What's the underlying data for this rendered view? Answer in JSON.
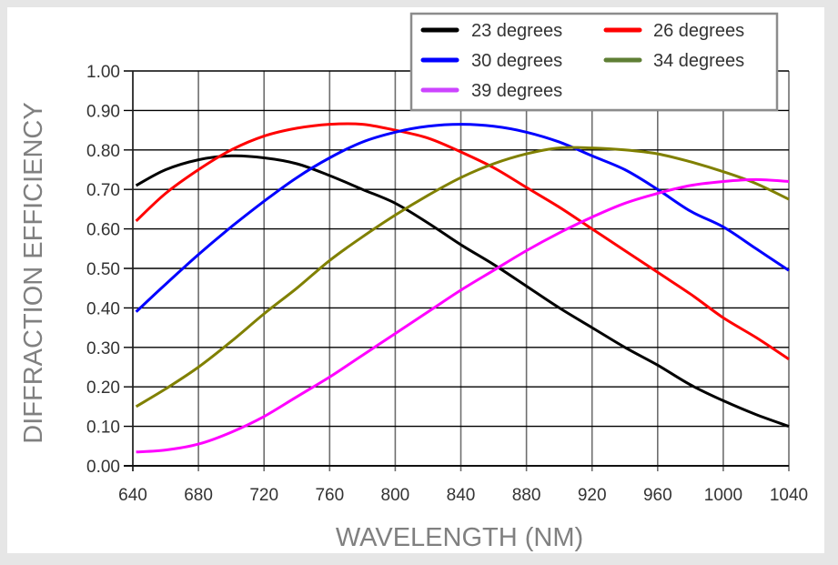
{
  "chart_data": {
    "type": "line",
    "title": "",
    "xlabel": "WAVELENGTH (NM)",
    "ylabel": "DIFFRACTION EFFICIENCY",
    "xlim": [
      640,
      1040
    ],
    "ylim": [
      0,
      1
    ],
    "grid": true,
    "legend_position": "top-right",
    "x_ticks": [
      "640",
      "680",
      "720",
      "760",
      "800",
      "840",
      "880",
      "920",
      "960",
      "1000",
      "1040"
    ],
    "y_ticks": [
      "0.00",
      "0.10",
      "0.20",
      "0.30",
      "0.40",
      "0.50",
      "0.60",
      "0.70",
      "0.80",
      "0.90",
      "1.00"
    ],
    "x": [
      642,
      660,
      680,
      700,
      720,
      740,
      760,
      780,
      800,
      820,
      840,
      860,
      880,
      900,
      920,
      940,
      960,
      980,
      1000,
      1020,
      1040
    ],
    "series": [
      {
        "name": "23 degrees",
        "color": "#000000",
        "values": [
          0.71,
          0.75,
          0.775,
          0.785,
          0.78,
          0.765,
          0.735,
          0.7,
          0.665,
          0.615,
          0.56,
          0.51,
          0.455,
          0.4,
          0.35,
          0.3,
          0.255,
          0.205,
          0.165,
          0.13,
          0.1
        ]
      },
      {
        "name": "26 degrees",
        "color": "#ff0000",
        "values": [
          0.62,
          0.69,
          0.75,
          0.8,
          0.835,
          0.855,
          0.865,
          0.865,
          0.85,
          0.83,
          0.795,
          0.755,
          0.705,
          0.655,
          0.6,
          0.545,
          0.49,
          0.435,
          0.375,
          0.325,
          0.27
        ]
      },
      {
        "name": "30 degrees",
        "color": "#0000ff",
        "values": [
          0.39,
          0.46,
          0.535,
          0.605,
          0.67,
          0.73,
          0.78,
          0.82,
          0.845,
          0.86,
          0.865,
          0.86,
          0.845,
          0.82,
          0.785,
          0.75,
          0.7,
          0.645,
          0.605,
          0.55,
          0.495
        ]
      },
      {
        "name": "34 degrees",
        "color": "#808000",
        "values": [
          0.15,
          0.195,
          0.25,
          0.315,
          0.385,
          0.45,
          0.52,
          0.58,
          0.635,
          0.685,
          0.73,
          0.765,
          0.79,
          0.805,
          0.805,
          0.8,
          0.79,
          0.77,
          0.745,
          0.715,
          0.675
        ]
      },
      {
        "name": "39 degrees",
        "color": "#ff00ff",
        "values": [
          0.035,
          0.04,
          0.055,
          0.085,
          0.125,
          0.175,
          0.225,
          0.28,
          0.335,
          0.39,
          0.445,
          0.495,
          0.545,
          0.59,
          0.63,
          0.665,
          0.69,
          0.71,
          0.72,
          0.725,
          0.72
        ]
      }
    ]
  },
  "legend": {
    "items": [
      {
        "label": "23 degrees",
        "color": "#000000"
      },
      {
        "label": "26 degrees",
        "color": "#ff0000"
      },
      {
        "label": "30 degrees",
        "color": "#0000ff"
      },
      {
        "label": "34 degrees",
        "color": "#5f7f35"
      },
      {
        "label": "39 degrees",
        "color": "#cc44ff"
      }
    ]
  }
}
